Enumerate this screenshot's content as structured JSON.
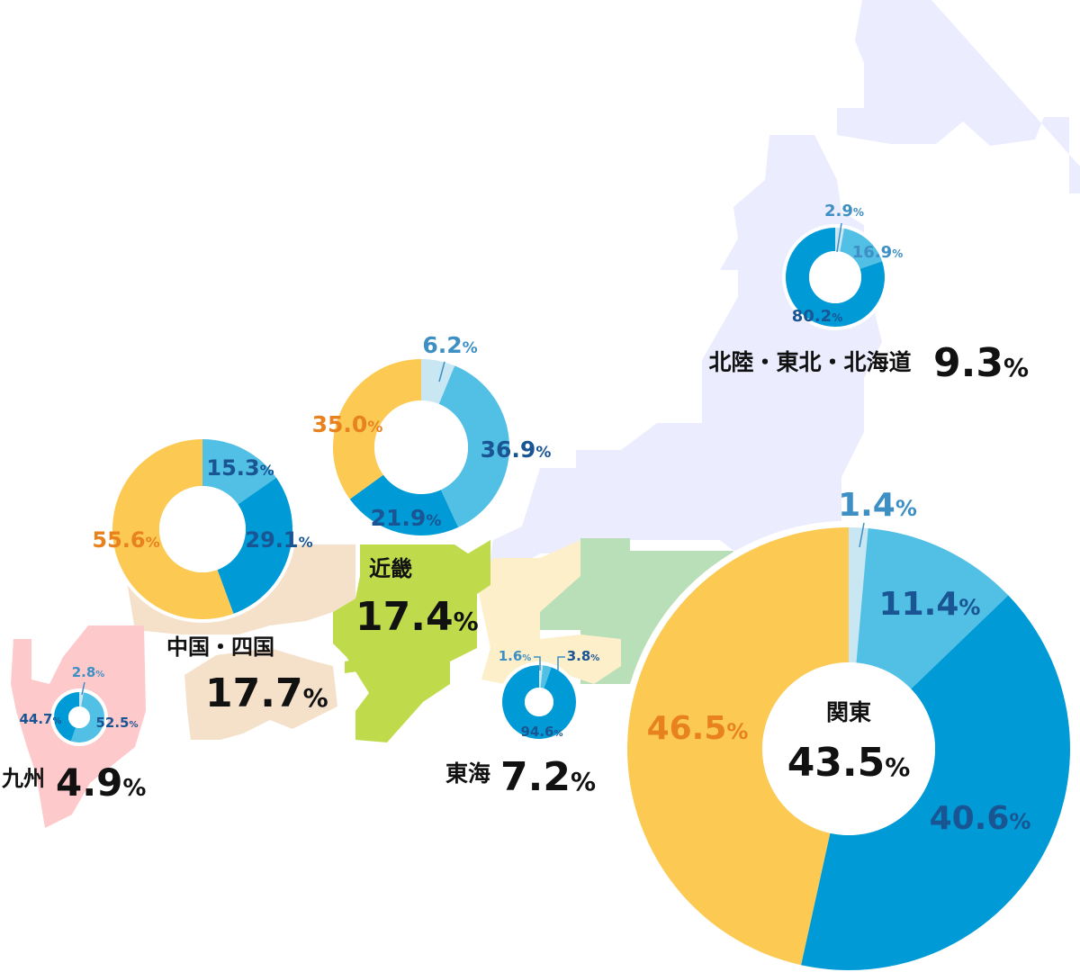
{
  "colors": {
    "seg_light": "#c8e7f3",
    "seg_sky": "#52bfe5",
    "seg_blue": "#009bd6",
    "seg_orange": "#fcc952",
    "text_orange": "#e8821e",
    "text_lightblue": "#3e8fc4",
    "text_navy": "#1a5593",
    "text_black": "#111111",
    "region_hokkaido_tohoku": "#ebecfe",
    "region_kanto": "#b8dfb8",
    "region_tokai": "#fdefc9",
    "region_kinki": "#bfda4b",
    "region_chugoku_shikoku": "#f5e1c9",
    "region_kyushu": "#fdc9cb"
  },
  "chart_data": [
    {
      "type": "pie",
      "region": "北陸・東北・北海道",
      "total": "9.3",
      "total_unit": "%",
      "slices": [
        {
          "value": 2.9,
          "label": "2.9",
          "color_key": "seg_light",
          "text_color_key": "text_lightblue"
        },
        {
          "value": 16.9,
          "label": "16.9",
          "color_key": "seg_sky",
          "text_color_key": "text_lightblue"
        },
        {
          "value": 80.2,
          "label": "80.2",
          "color_key": "seg_blue",
          "text_color_key": "text_navy"
        }
      ]
    },
    {
      "type": "pie",
      "region": "近畿",
      "total": "17.4",
      "total_unit": "%",
      "slices": [
        {
          "value": 6.2,
          "label": "6.2",
          "color_key": "seg_light",
          "text_color_key": "text_lightblue"
        },
        {
          "value": 36.9,
          "label": "36.9",
          "color_key": "seg_sky",
          "text_color_key": "text_navy"
        },
        {
          "value": 21.9,
          "label": "21.9",
          "color_key": "seg_blue",
          "text_color_key": "text_navy"
        },
        {
          "value": 35.0,
          "label": "35.0",
          "color_key": "seg_orange",
          "text_color_key": "text_orange"
        }
      ]
    },
    {
      "type": "pie",
      "region": "中国・四国",
      "total": "17.7",
      "total_unit": "%",
      "slices": [
        {
          "value": 15.3,
          "label": "15.3",
          "color_key": "seg_sky",
          "text_color_key": "text_navy"
        },
        {
          "value": 29.1,
          "label": "29.1",
          "color_key": "seg_blue",
          "text_color_key": "text_navy"
        },
        {
          "value": 55.6,
          "label": "55.6",
          "color_key": "seg_orange",
          "text_color_key": "text_orange"
        }
      ]
    },
    {
      "type": "pie",
      "region": "関東",
      "total": "43.5",
      "total_unit": "%",
      "slices": [
        {
          "value": 1.4,
          "label": "1.4",
          "color_key": "seg_light",
          "text_color_key": "text_lightblue"
        },
        {
          "value": 11.4,
          "label": "11.4",
          "color_key": "seg_sky",
          "text_color_key": "text_navy"
        },
        {
          "value": 40.6,
          "label": "40.6",
          "color_key": "seg_blue",
          "text_color_key": "text_navy"
        },
        {
          "value": 46.5,
          "label": "46.5",
          "color_key": "seg_orange",
          "text_color_key": "text_orange"
        }
      ]
    },
    {
      "type": "pie",
      "region": "東海",
      "total": "7.2",
      "total_unit": "%",
      "slices": [
        {
          "value": 1.6,
          "label": "1.6",
          "color_key": "seg_light",
          "text_color_key": "text_lightblue"
        },
        {
          "value": 3.8,
          "label": "3.8",
          "color_key": "seg_sky",
          "text_color_key": "text_navy"
        },
        {
          "value": 94.6,
          "label": "94.6",
          "color_key": "seg_blue",
          "text_color_key": "text_navy"
        }
      ]
    },
    {
      "type": "pie",
      "region": "九州",
      "total": "4.9",
      "total_unit": "%",
      "slices": [
        {
          "value": 2.8,
          "label": "2.8",
          "color_key": "seg_light",
          "text_color_key": "text_lightblue"
        },
        {
          "value": 52.5,
          "label": "52.5",
          "color_key": "seg_sky",
          "text_color_key": "text_navy"
        },
        {
          "value": 44.7,
          "label": "44.7",
          "color_key": "seg_blue",
          "text_color_key": "text_navy"
        }
      ]
    }
  ],
  "percent_sign": "%"
}
